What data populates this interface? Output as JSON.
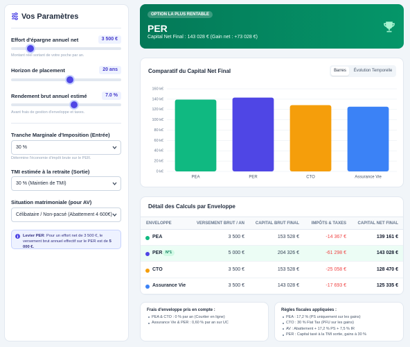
{
  "sidebar": {
    "title": "Vos Paramètres",
    "sliders": [
      {
        "label": "Effort d'épargne annuel net",
        "value": "3 500 €",
        "hint": "Montant réel sortant de votre poche par an."
      },
      {
        "label": "Horizon de placement",
        "value": "20 ans"
      },
      {
        "label": "Rendement brut annuel estimé",
        "value": "7.0 %",
        "hint": "Avant frais de gestion d'enveloppe et taxes."
      }
    ],
    "selects": [
      {
        "label": "Tranche Marginale d'Imposition (Entrée)",
        "value": "30 %",
        "hint": "Détermine l'économie d'impôt brute sur le PER."
      },
      {
        "label": "TMI estimée à la retraite (Sortie)",
        "value": "30 % (Maintien de TMI)"
      },
      {
        "label": "Situation matrimoniale (pour AV)",
        "value": "Célibataire / Non-pacsé (Abattement 4 600€)"
      }
    ],
    "info": [
      "Levier PER",
      ": Pour un effort net de 3 500 €, le versement brut annuel effectif sur le PER est de",
      "5 000 €."
    ]
  },
  "banner": {
    "badge": "OPTION LA PLUS RENTABLE",
    "title": "PER",
    "subtitle": "Capital Net Final : 143 028 € (Gain net : +73 028 €)"
  },
  "chart_controls": [
    "Barres",
    "Évolution Temporelle"
  ],
  "chart_data": {
    "type": "bar",
    "title": "Comparatif du Capital Net Final",
    "categories": [
      "PEA",
      "PER",
      "CTO",
      "Assurance Vie"
    ],
    "values": [
      139.161,
      143.028,
      128.47,
      125.335
    ],
    "colors": [
      "#10b981",
      "#4f46e5",
      "#f59e0b",
      "#3b82f6"
    ],
    "ylim": [
      0,
      160
    ],
    "yticks": [
      {
        "value": 0,
        "label": "0 k€"
      },
      {
        "value": 20,
        "label": "20 k€"
      },
      {
        "value": 40,
        "label": "40 k€"
      },
      {
        "value": 60,
        "label": "60 k€"
      },
      {
        "value": 80,
        "label": "80 k€"
      },
      {
        "value": 100,
        "label": "100 k€"
      },
      {
        "value": 120,
        "label": "120 k€"
      },
      {
        "value": 140,
        "label": "140 k€"
      },
      {
        "value": 160,
        "label": "160 k€"
      }
    ],
    "grid": true
  },
  "table": {
    "title": "Détail des Calculs par Enveloppe",
    "headers": [
      "ENVELOPPE",
      "VERSEMENT BRUT / AN",
      "CAPITAL BRUT FINAL",
      "IMPÔTS & TAXES",
      "CAPITAL NET FINAL"
    ],
    "rows": [
      {
        "name": "PEA",
        "color": "#10b981",
        "cells": [
          "3 500 €",
          "153 528 €",
          "-14 367 €",
          "139 161 €"
        ]
      },
      {
        "name": "PER",
        "badge": "N°1",
        "color": "#4f46e5",
        "highlight": true,
        "cells": [
          "5 000 €",
          "204 326 €",
          "-61 298 €",
          "143 028 €"
        ]
      },
      {
        "name": "CTO",
        "color": "#f59e0b",
        "cells": [
          "3 500 €",
          "153 528 €",
          "-25 058 €",
          "128 470 €"
        ]
      },
      {
        "name": "Assurance Vie",
        "color": "#3b82f6",
        "cells": [
          "3 500 €",
          "143 028 €",
          "-17 693 €",
          "125 335 €"
        ]
      }
    ]
  },
  "notes": [
    {
      "title": "Frais d'enveloppe pris en compte :",
      "items": [
        "PEA & CTO : 0 % par an (Courtier en ligne)",
        "Assurance Vie & PER : 0,60 % par an sur UC"
      ]
    },
    {
      "title": "Règles fiscales appliquées :",
      "items": [
        "PEA : 17,2 % (PS uniquement sur les gains)",
        "CTO : 30 % Flat Tax (PFU sur les gains)",
        "AV : Abattement + 17,2 % PS + 7,5 % IR",
        "PER : Capital taxé à la TMI sortie, gains à 30 %"
      ]
    }
  ]
}
